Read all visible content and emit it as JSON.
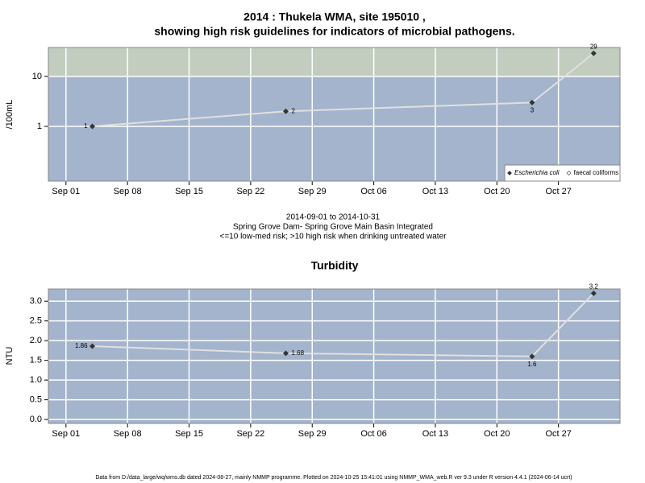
{
  "chart_data": [
    {
      "type": "line",
      "title": "2014 : Thukela WMA, site 195010 ,",
      "subtitle": "showing high risk guidelines for indicators of microbial pathogens.",
      "ylabel": "/100mL",
      "log_scale": true,
      "grid": true,
      "threshold": 10,
      "threshold_color": "#c2cdc0",
      "background_color": "#a3b4cc",
      "x": [
        "2014-09-04",
        "2014-09-26",
        "2014-10-24",
        "2014-10-31"
      ],
      "series": [
        {
          "name": "Escherichia coli",
          "color": "#333333",
          "values": [
            1,
            2,
            3,
            29
          ]
        },
        {
          "name": "faecal coliforms",
          "color": "#ffffff",
          "values": [
            null,
            null,
            null,
            null
          ]
        }
      ],
      "xlim": [
        "2014-08-30",
        "2014-11-03"
      ],
      "xticks": [
        {
          "value": "2014-09-01",
          "label": "Sep 01"
        },
        {
          "value": "2014-09-08",
          "label": "Sep 08"
        },
        {
          "value": "2014-09-15",
          "label": "Sep 15"
        },
        {
          "value": "2014-09-22",
          "label": "Sep 22"
        },
        {
          "value": "2014-09-29",
          "label": "Sep 29"
        },
        {
          "value": "2014-10-06",
          "label": "Oct 06"
        },
        {
          "value": "2014-10-13",
          "label": "Oct 13"
        },
        {
          "value": "2014-10-20",
          "label": "Oct 20"
        },
        {
          "value": "2014-10-27",
          "label": "Oct 27"
        }
      ],
      "ylim": [
        0.08,
        38
      ],
      "yticks": [
        1,
        10
      ],
      "legend": "bottom-right",
      "notes": [
        "2014-09-01 to 2014-10-31",
        "Spring Grove Dam- Spring Grove Main Basin Integrated",
        "<=10 low-med risk; >10 high risk when drinking untreated water"
      ]
    },
    {
      "type": "line",
      "title": "Turbidity",
      "ylabel": "NTU",
      "grid": true,
      "background_color": "#a3b4cc",
      "x": [
        "2014-09-04",
        "2014-09-26",
        "2014-10-24",
        "2014-10-31"
      ],
      "series": [
        {
          "name": "Turbidity",
          "color": "#333333",
          "values": [
            1.86,
            1.68,
            1.6,
            3.2
          ]
        }
      ],
      "xlim": [
        "2014-08-30",
        "2014-11-03"
      ],
      "xticks": [
        {
          "value": "2014-09-01",
          "label": "Sep 01"
        },
        {
          "value": "2014-09-08",
          "label": "Sep 08"
        },
        {
          "value": "2014-09-15",
          "label": "Sep 15"
        },
        {
          "value": "2014-09-22",
          "label": "Sep 22"
        },
        {
          "value": "2014-09-29",
          "label": "Sep 29"
        },
        {
          "value": "2014-10-06",
          "label": "Oct 06"
        },
        {
          "value": "2014-10-13",
          "label": "Oct 13"
        },
        {
          "value": "2014-10-20",
          "label": "Oct 20"
        },
        {
          "value": "2014-10-27",
          "label": "Oct 27"
        }
      ],
      "ylim": [
        -0.1,
        3.31
      ],
      "yticks": [
        {
          "value": 0,
          "label": "0.0"
        },
        0.5,
        {
          "value": 1,
          "label": "1.0"
        },
        1.5,
        {
          "value": 2,
          "label": "2.0"
        },
        2.5,
        {
          "value": 3,
          "label": "3.0"
        }
      ]
    }
  ],
  "footer": "Data from D:/data_large/wq/wms.db dated 2024-08-27, mainly NMMP programme. Plotted on 2024-10-25 15:41:01 using NMMP_WMA_web.R ver 9.3 under R version 4.4.1 (2024-06-14 ucrt)"
}
